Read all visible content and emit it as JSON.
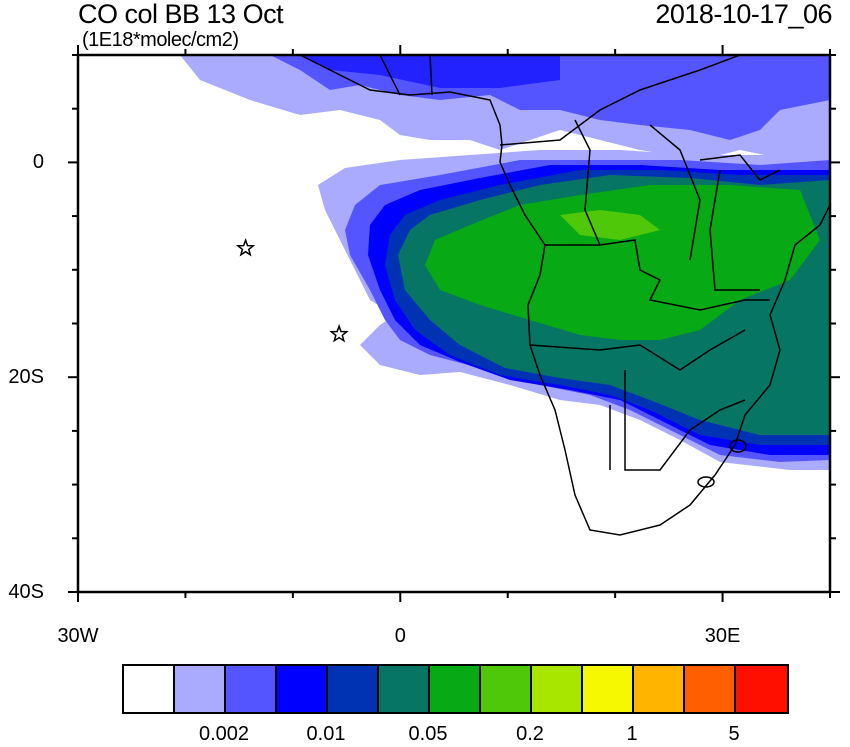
{
  "title": "CO col BB 13 Oct",
  "units": "(1E18*molec/cm2)",
  "date": "2018-10-17_06",
  "map": {
    "lon_range": [
      -30,
      40
    ],
    "lat_range": [
      -40,
      10
    ],
    "x_ticks": [
      {
        "lon": -30,
        "label": "30W"
      },
      {
        "lon": 0,
        "label": "0"
      },
      {
        "lon": 30,
        "label": "30E"
      }
    ],
    "y_ticks": [
      {
        "lat": 0,
        "label": "0"
      },
      {
        "lat": -20,
        "label": "20S"
      },
      {
        "lat": -40,
        "label": "40S"
      }
    ],
    "markers": [
      {
        "name": "star-marker",
        "lon": -14.4,
        "lat": -8
      },
      {
        "name": "star-marker",
        "lon": -5.7,
        "lat": -16
      }
    ]
  },
  "colorbar": {
    "colors": [
      "#ffffff",
      "#aaaaff",
      "#5555ff",
      "#0000ff",
      "#0033b3",
      "#077563",
      "#07a914",
      "#50c80a",
      "#a8e600",
      "#f5f800",
      "#ffb400",
      "#ff5f00",
      "#ff0f00"
    ],
    "labels": [
      "0.002",
      "0.01",
      "0.05",
      "0.2",
      "1",
      "5"
    ]
  }
}
